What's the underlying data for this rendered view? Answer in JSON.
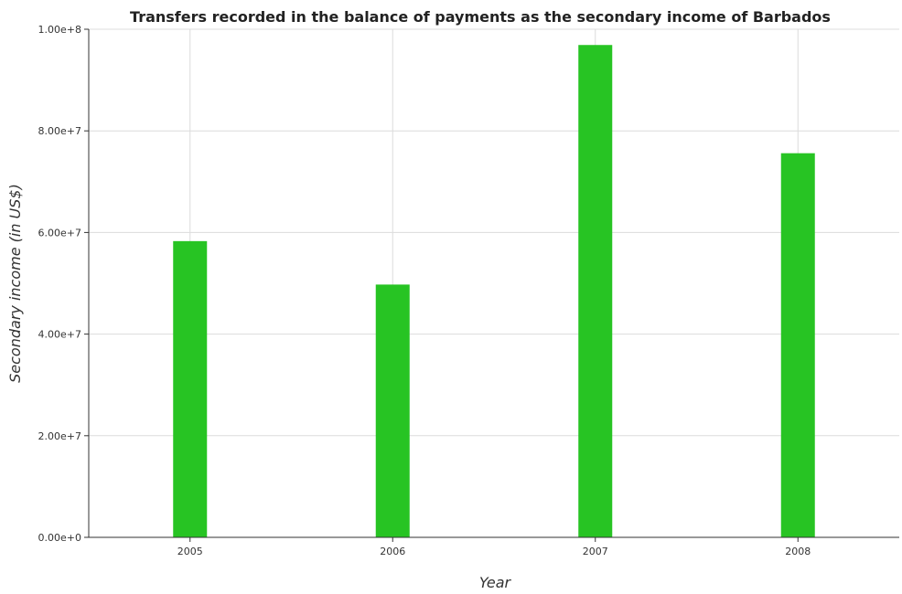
{
  "chart_data": {
    "type": "bar",
    "title": "Transfers recorded in the balance of payments as the secondary income of Barbados",
    "xlabel": "Year",
    "ylabel": "Secondary income (in US$)",
    "categories": [
      "2005",
      "2006",
      "2007",
      "2008"
    ],
    "values": [
      58300000,
      49750000,
      96900000,
      75600000
    ],
    "ylim": [
      0,
      100000000
    ],
    "yticks": [
      0,
      20000000,
      40000000,
      60000000,
      80000000,
      100000000
    ],
    "ytick_labels": [
      "0.00e+0",
      "2.00e+7",
      "4.00e+7",
      "6.00e+7",
      "8.00e+7",
      "1.00e+8"
    ],
    "grid": true,
    "bar_color": "#27c423"
  }
}
